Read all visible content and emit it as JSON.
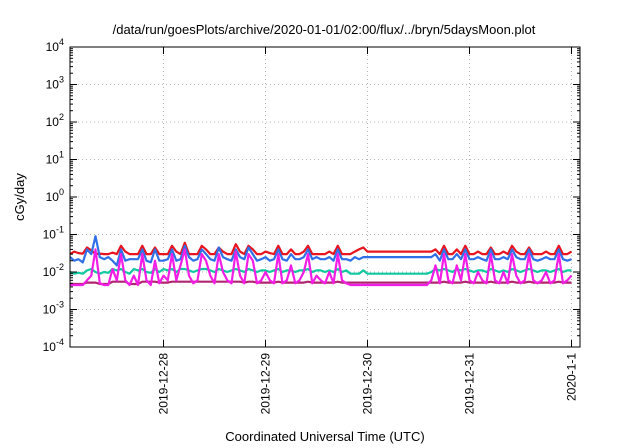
{
  "chart_data": {
    "type": "line",
    "title": "/data/run/goesPlots/archive/2020-01-01/02:00/flux/../bryn/5daysMoon.plot",
    "xlabel": "Coordinated Universal Time (UTC)",
    "ylabel": "cGy/day",
    "y_scale": "log",
    "ylim": [
      0.0001,
      10000
    ],
    "xlim": [
      "2019-12-27 02:00",
      "2020-01-01 02:00"
    ],
    "y_ticks": [
      {
        "value": 0.0001,
        "base": "10",
        "exp": "-4"
      },
      {
        "value": 0.001,
        "base": "10",
        "exp": "-3"
      },
      {
        "value": 0.01,
        "base": "10",
        "exp": "-2"
      },
      {
        "value": 0.1,
        "base": "10",
        "exp": "-1"
      },
      {
        "value": 1,
        "base": "10",
        "exp": "0"
      },
      {
        "value": 10,
        "base": "10",
        "exp": "1"
      },
      {
        "value": 100,
        "base": "10",
        "exp": "2"
      },
      {
        "value": 1000,
        "base": "10",
        "exp": "3"
      },
      {
        "value": 10000,
        "base": "10",
        "exp": "4"
      }
    ],
    "x_ticks": [
      {
        "value": "2019-12-28 00:00",
        "label": "2019-12-28"
      },
      {
        "value": "2019-12-29 00:00",
        "label": "2019-12-29"
      },
      {
        "value": "2019-12-30 00:00",
        "label": "2019-12-30"
      },
      {
        "value": "2019-12-31 00:00",
        "label": "2019-12-31"
      },
      {
        "value": "2020-01-01 00:00",
        "label": "2020-1-1"
      }
    ],
    "grid": true,
    "time_step_hours": 1,
    "series": [
      {
        "color": "#e8141e",
        "x_start": "2019-12-27 02:00",
        "values": [
          0.03,
          0.035,
          0.032,
          0.031,
          0.045,
          0.038,
          0.03,
          0.031,
          0.03,
          0.03,
          0.033,
          0.03,
          0.05,
          0.035,
          0.03,
          0.03,
          0.03,
          0.05,
          0.03,
          0.03,
          0.045,
          0.03,
          0.03,
          0.03,
          0.05,
          0.035,
          0.03,
          0.06,
          0.03,
          0.03,
          0.03,
          0.05,
          0.04,
          0.03,
          0.03,
          0.045,
          0.035,
          0.03,
          0.03,
          0.055,
          0.035,
          0.03,
          0.05,
          0.04,
          0.03,
          0.03,
          0.035,
          0.032,
          0.03,
          0.05,
          0.03,
          0.03,
          0.04,
          0.03,
          0.03,
          0.035,
          0.05,
          0.03,
          0.03,
          0.03,
          0.03,
          0.035,
          0.03,
          0.05,
          0.03,
          0.03,
          0.03,
          0.035,
          0.04,
          0.045,
          0.035,
          0.035,
          0.035,
          0.035,
          0.035,
          0.035,
          0.035,
          0.035,
          0.035,
          0.035,
          0.035,
          0.035,
          0.035,
          0.035,
          0.035,
          0.035,
          0.04,
          0.03,
          0.05,
          0.03,
          0.03,
          0.04,
          0.03,
          0.05,
          0.03,
          0.03,
          0.035,
          0.03,
          0.03,
          0.045,
          0.03,
          0.03,
          0.035,
          0.03,
          0.05,
          0.035,
          0.03,
          0.03,
          0.045,
          0.03,
          0.03,
          0.03,
          0.035,
          0.03,
          0.03,
          0.05,
          0.03,
          0.03,
          0.035
        ]
      },
      {
        "color": "#2f6fe8",
        "x_start": "2019-12-27 02:00",
        "values": [
          0.025,
          0.02,
          0.022,
          0.018,
          0.04,
          0.03,
          0.09,
          0.025,
          0.022,
          0.025,
          0.02,
          0.015,
          0.04,
          0.02,
          0.022,
          0.022,
          0.022,
          0.04,
          0.02,
          0.018,
          0.04,
          0.02,
          0.02,
          0.022,
          0.04,
          0.02,
          0.022,
          0.05,
          0.025,
          0.02,
          0.022,
          0.04,
          0.03,
          0.022,
          0.02,
          0.045,
          0.025,
          0.022,
          0.02,
          0.04,
          0.025,
          0.022,
          0.045,
          0.03,
          0.02,
          0.022,
          0.025,
          0.02,
          0.022,
          0.04,
          0.022,
          0.02,
          0.03,
          0.022,
          0.022,
          0.025,
          0.04,
          0.022,
          0.025,
          0.022,
          0.022,
          0.025,
          0.02,
          0.04,
          0.022,
          0.022,
          0.02,
          0.025,
          0.022,
          0.025,
          0.025,
          0.025,
          0.025,
          0.025,
          0.025,
          0.025,
          0.025,
          0.025,
          0.025,
          0.025,
          0.025,
          0.025,
          0.025,
          0.025,
          0.025,
          0.025,
          0.03,
          0.02,
          0.04,
          0.022,
          0.022,
          0.03,
          0.022,
          0.04,
          0.022,
          0.022,
          0.025,
          0.022,
          0.02,
          0.04,
          0.022,
          0.022,
          0.025,
          0.022,
          0.04,
          0.025,
          0.022,
          0.022,
          0.04,
          0.022,
          0.02,
          0.022,
          0.025,
          0.022,
          0.022,
          0.04,
          0.022,
          0.02,
          0.022
        ]
      },
      {
        "color": "#11c8a0",
        "x_start": "2019-12-27 02:00",
        "values": [
          0.01,
          0.009,
          0.0095,
          0.009,
          0.011,
          0.012,
          0.01,
          0.009,
          0.01,
          0.0095,
          0.012,
          0.011,
          0.012,
          0.01,
          0.009,
          0.012,
          0.011,
          0.012,
          0.01,
          0.0095,
          0.012,
          0.01,
          0.012,
          0.011,
          0.012,
          0.01,
          0.012,
          0.012,
          0.011,
          0.01,
          0.011,
          0.012,
          0.012,
          0.011,
          0.01,
          0.012,
          0.011,
          0.01,
          0.011,
          0.012,
          0.011,
          0.01,
          0.012,
          0.011,
          0.01,
          0.011,
          0.011,
          0.01,
          0.011,
          0.012,
          0.01,
          0.011,
          0.011,
          0.01,
          0.011,
          0.011,
          0.012,
          0.01,
          0.011,
          0.011,
          0.01,
          0.011,
          0.01,
          0.012,
          0.01,
          0.011,
          0.009,
          0.009,
          0.009,
          0.011,
          0.009,
          0.009,
          0.009,
          0.009,
          0.009,
          0.009,
          0.009,
          0.009,
          0.009,
          0.009,
          0.009,
          0.009,
          0.009,
          0.009,
          0.009,
          0.01,
          0.012,
          0.011,
          0.012,
          0.011,
          0.01,
          0.012,
          0.011,
          0.012,
          0.011,
          0.01,
          0.011,
          0.011,
          0.01,
          0.012,
          0.011,
          0.01,
          0.011,
          0.01,
          0.012,
          0.011,
          0.01,
          0.011,
          0.012,
          0.011,
          0.01,
          0.011,
          0.011,
          0.01,
          0.011,
          0.012,
          0.01,
          0.011,
          0.011
        ]
      },
      {
        "color": "#b02570",
        "x_start": "2019-12-27 02:00",
        "values": [
          0.0048,
          0.0048,
          0.0048,
          0.0048,
          0.0052,
          0.0052,
          0.0052,
          0.0048,
          0.0048,
          0.0048,
          0.0055,
          0.0055,
          0.0055,
          0.0055,
          0.0048,
          0.0048,
          0.0048,
          0.0055,
          0.0055,
          0.0055,
          0.0055,
          0.0052,
          0.0052,
          0.0052,
          0.0055,
          0.0055,
          0.0055,
          0.0055,
          0.0055,
          0.0055,
          0.0055,
          0.0055,
          0.0055,
          0.0055,
          0.0055,
          0.0055,
          0.0055,
          0.0055,
          0.0055,
          0.0055,
          0.0055,
          0.0052,
          0.0055,
          0.0055,
          0.0052,
          0.0052,
          0.0052,
          0.0052,
          0.0052,
          0.0055,
          0.0052,
          0.0052,
          0.0052,
          0.0052,
          0.0052,
          0.0052,
          0.0055,
          0.0052,
          0.0052,
          0.0052,
          0.0052,
          0.0052,
          0.0052,
          0.0055,
          0.0052,
          0.0052,
          0.0052,
          0.0052,
          0.0052,
          0.0052,
          0.0052,
          0.0052,
          0.0052,
          0.0052,
          0.0052,
          0.0052,
          0.0052,
          0.0052,
          0.0052,
          0.0052,
          0.0052,
          0.0052,
          0.0052,
          0.0052,
          0.0052,
          0.0052,
          0.0052,
          0.0052,
          0.0055,
          0.0052,
          0.0052,
          0.0052,
          0.0052,
          0.0055,
          0.0052,
          0.0052,
          0.0052,
          0.0052,
          0.0052,
          0.0055,
          0.0052,
          0.0052,
          0.0052,
          0.0052,
          0.0055,
          0.0052,
          0.0052,
          0.0052,
          0.0055,
          0.0052,
          0.0052,
          0.0052,
          0.0052,
          0.0052,
          0.0052,
          0.0055,
          0.0052,
          0.0052,
          0.0052
        ]
      },
      {
        "color": "#f21ee6",
        "x_start": "2019-12-27 02:00",
        "values": [
          0.0045,
          0.0045,
          0.0045,
          0.0045,
          0.006,
          0.008,
          0.04,
          0.005,
          0.0045,
          0.0045,
          0.012,
          0.006,
          0.03,
          0.006,
          0.0045,
          0.008,
          0.0045,
          0.03,
          0.006,
          0.0045,
          0.02,
          0.005,
          0.008,
          0.006,
          0.03,
          0.006,
          0.015,
          0.04,
          0.008,
          0.005,
          0.006,
          0.03,
          0.02,
          0.008,
          0.005,
          0.03,
          0.01,
          0.006,
          0.005,
          0.035,
          0.008,
          0.005,
          0.03,
          0.02,
          0.005,
          0.006,
          0.01,
          0.006,
          0.005,
          0.03,
          0.005,
          0.006,
          0.015,
          0.005,
          0.006,
          0.01,
          0.03,
          0.005,
          0.008,
          0.006,
          0.005,
          0.01,
          0.005,
          0.03,
          0.006,
          0.005,
          0.0045,
          0.0045,
          0.0045,
          0.0045,
          0.0045,
          0.0045,
          0.0045,
          0.0045,
          0.0045,
          0.0045,
          0.0045,
          0.0045,
          0.0045,
          0.0045,
          0.0045,
          0.0045,
          0.0045,
          0.0045,
          0.0045,
          0.006,
          0.015,
          0.005,
          0.03,
          0.006,
          0.005,
          0.015,
          0.006,
          0.03,
          0.006,
          0.005,
          0.01,
          0.006,
          0.005,
          0.03,
          0.006,
          0.005,
          0.01,
          0.005,
          0.03,
          0.008,
          0.005,
          0.006,
          0.03,
          0.006,
          0.005,
          0.006,
          0.01,
          0.005,
          0.006,
          0.03,
          0.005,
          0.006,
          0.008
        ]
      }
    ]
  }
}
